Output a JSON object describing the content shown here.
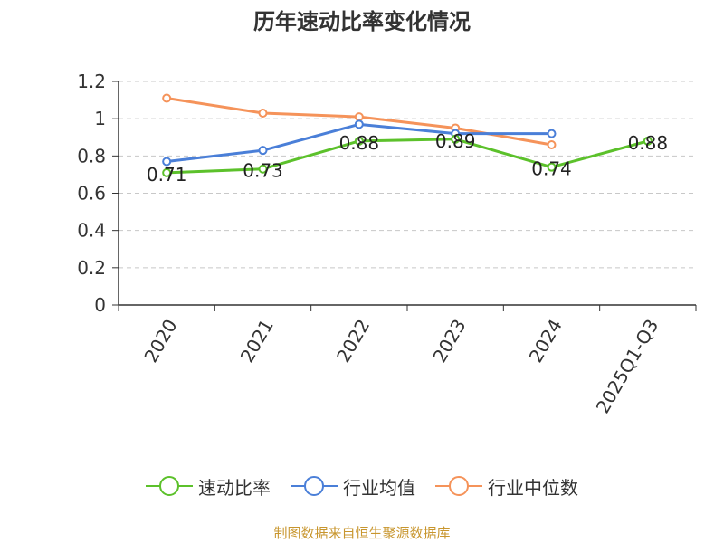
{
  "chart_data": {
    "type": "line",
    "title": "历年速动比率变化情况",
    "categories": [
      "2020",
      "2021",
      "2022",
      "2023",
      "2024",
      "2025Q1-Q3"
    ],
    "ylim": [
      0,
      1.2
    ],
    "yticks": [
      "0",
      "0.2",
      "0.4",
      "0.6",
      "0.8",
      "1",
      "1.2"
    ],
    "ytick_values": [
      0,
      0.2,
      0.4,
      0.6,
      0.8,
      1.0,
      1.2
    ],
    "grid": true,
    "legend_position": "bottom",
    "series": [
      {
        "name": "速动比率",
        "color": "#5cc12b",
        "values": [
          0.71,
          0.73,
          0.88,
          0.89,
          0.74,
          0.88
        ],
        "labels": [
          "0.71",
          "0.73",
          "0.88",
          "0.89",
          "0.74",
          "0.88"
        ]
      },
      {
        "name": "行业均值",
        "color": "#4a7fd8",
        "values": [
          0.77,
          0.83,
          0.97,
          0.92,
          0.92,
          null
        ]
      },
      {
        "name": "行业中位数",
        "color": "#f5935a",
        "values": [
          1.11,
          1.03,
          1.01,
          0.95,
          0.86,
          null
        ]
      }
    ]
  },
  "source_note": "制图数据来自恒生聚源数据库",
  "source_color": "#c8962e"
}
